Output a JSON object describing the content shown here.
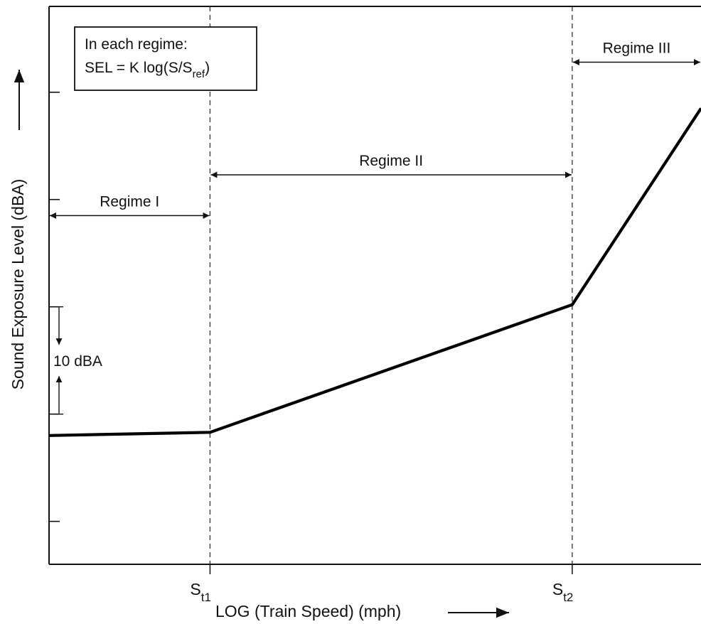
{
  "chart_data": {
    "type": "line",
    "title": "",
    "xlabel": "LOG (Train Speed) (mph)",
    "ylabel": "Sound Exposure Level (dBA)",
    "x_scale": "log",
    "x_ticks": [
      {
        "main": "S",
        "sub": "t1"
      },
      {
        "main": "S",
        "sub": "t2"
      }
    ],
    "series": [
      {
        "values": [
          {
            "x": 0.0,
            "y": 50.0
          },
          {
            "x": 1.0,
            "y": 50.3
          },
          {
            "x": 3.25,
            "y": 62.2
          },
          {
            "x": 4.05,
            "y": 80.5
          }
        ]
      }
    ],
    "xlim": [
      0,
      4.05
    ],
    "ylim": [
      38,
      90
    ],
    "y_ticks": [
      42,
      52,
      62,
      72,
      82
    ],
    "breakpoints": [
      1.0,
      3.25
    ],
    "regimes": [
      {
        "label": "Regime I",
        "x0": 0.0,
        "x1": 1.0,
        "y": 70.5
      },
      {
        "label": "Regime II",
        "x0": 1.0,
        "x1": 3.25,
        "y": 74.3
      },
      {
        "label": "Regime III",
        "x0": 3.25,
        "x1": 4.05,
        "y": 84.8
      }
    ],
    "scale_bar": {
      "label": "10 dBA",
      "from": 52,
      "to": 62
    },
    "formula_box": {
      "line1": "In each regime:",
      "line2_main": "SEL = K log(S/S",
      "line2_sub": "ref",
      "line2_close": ")"
    },
    "grid": false,
    "legend": "none"
  },
  "colors": {
    "line": "#000000",
    "axis": "#111111",
    "guide": "#333333"
  }
}
